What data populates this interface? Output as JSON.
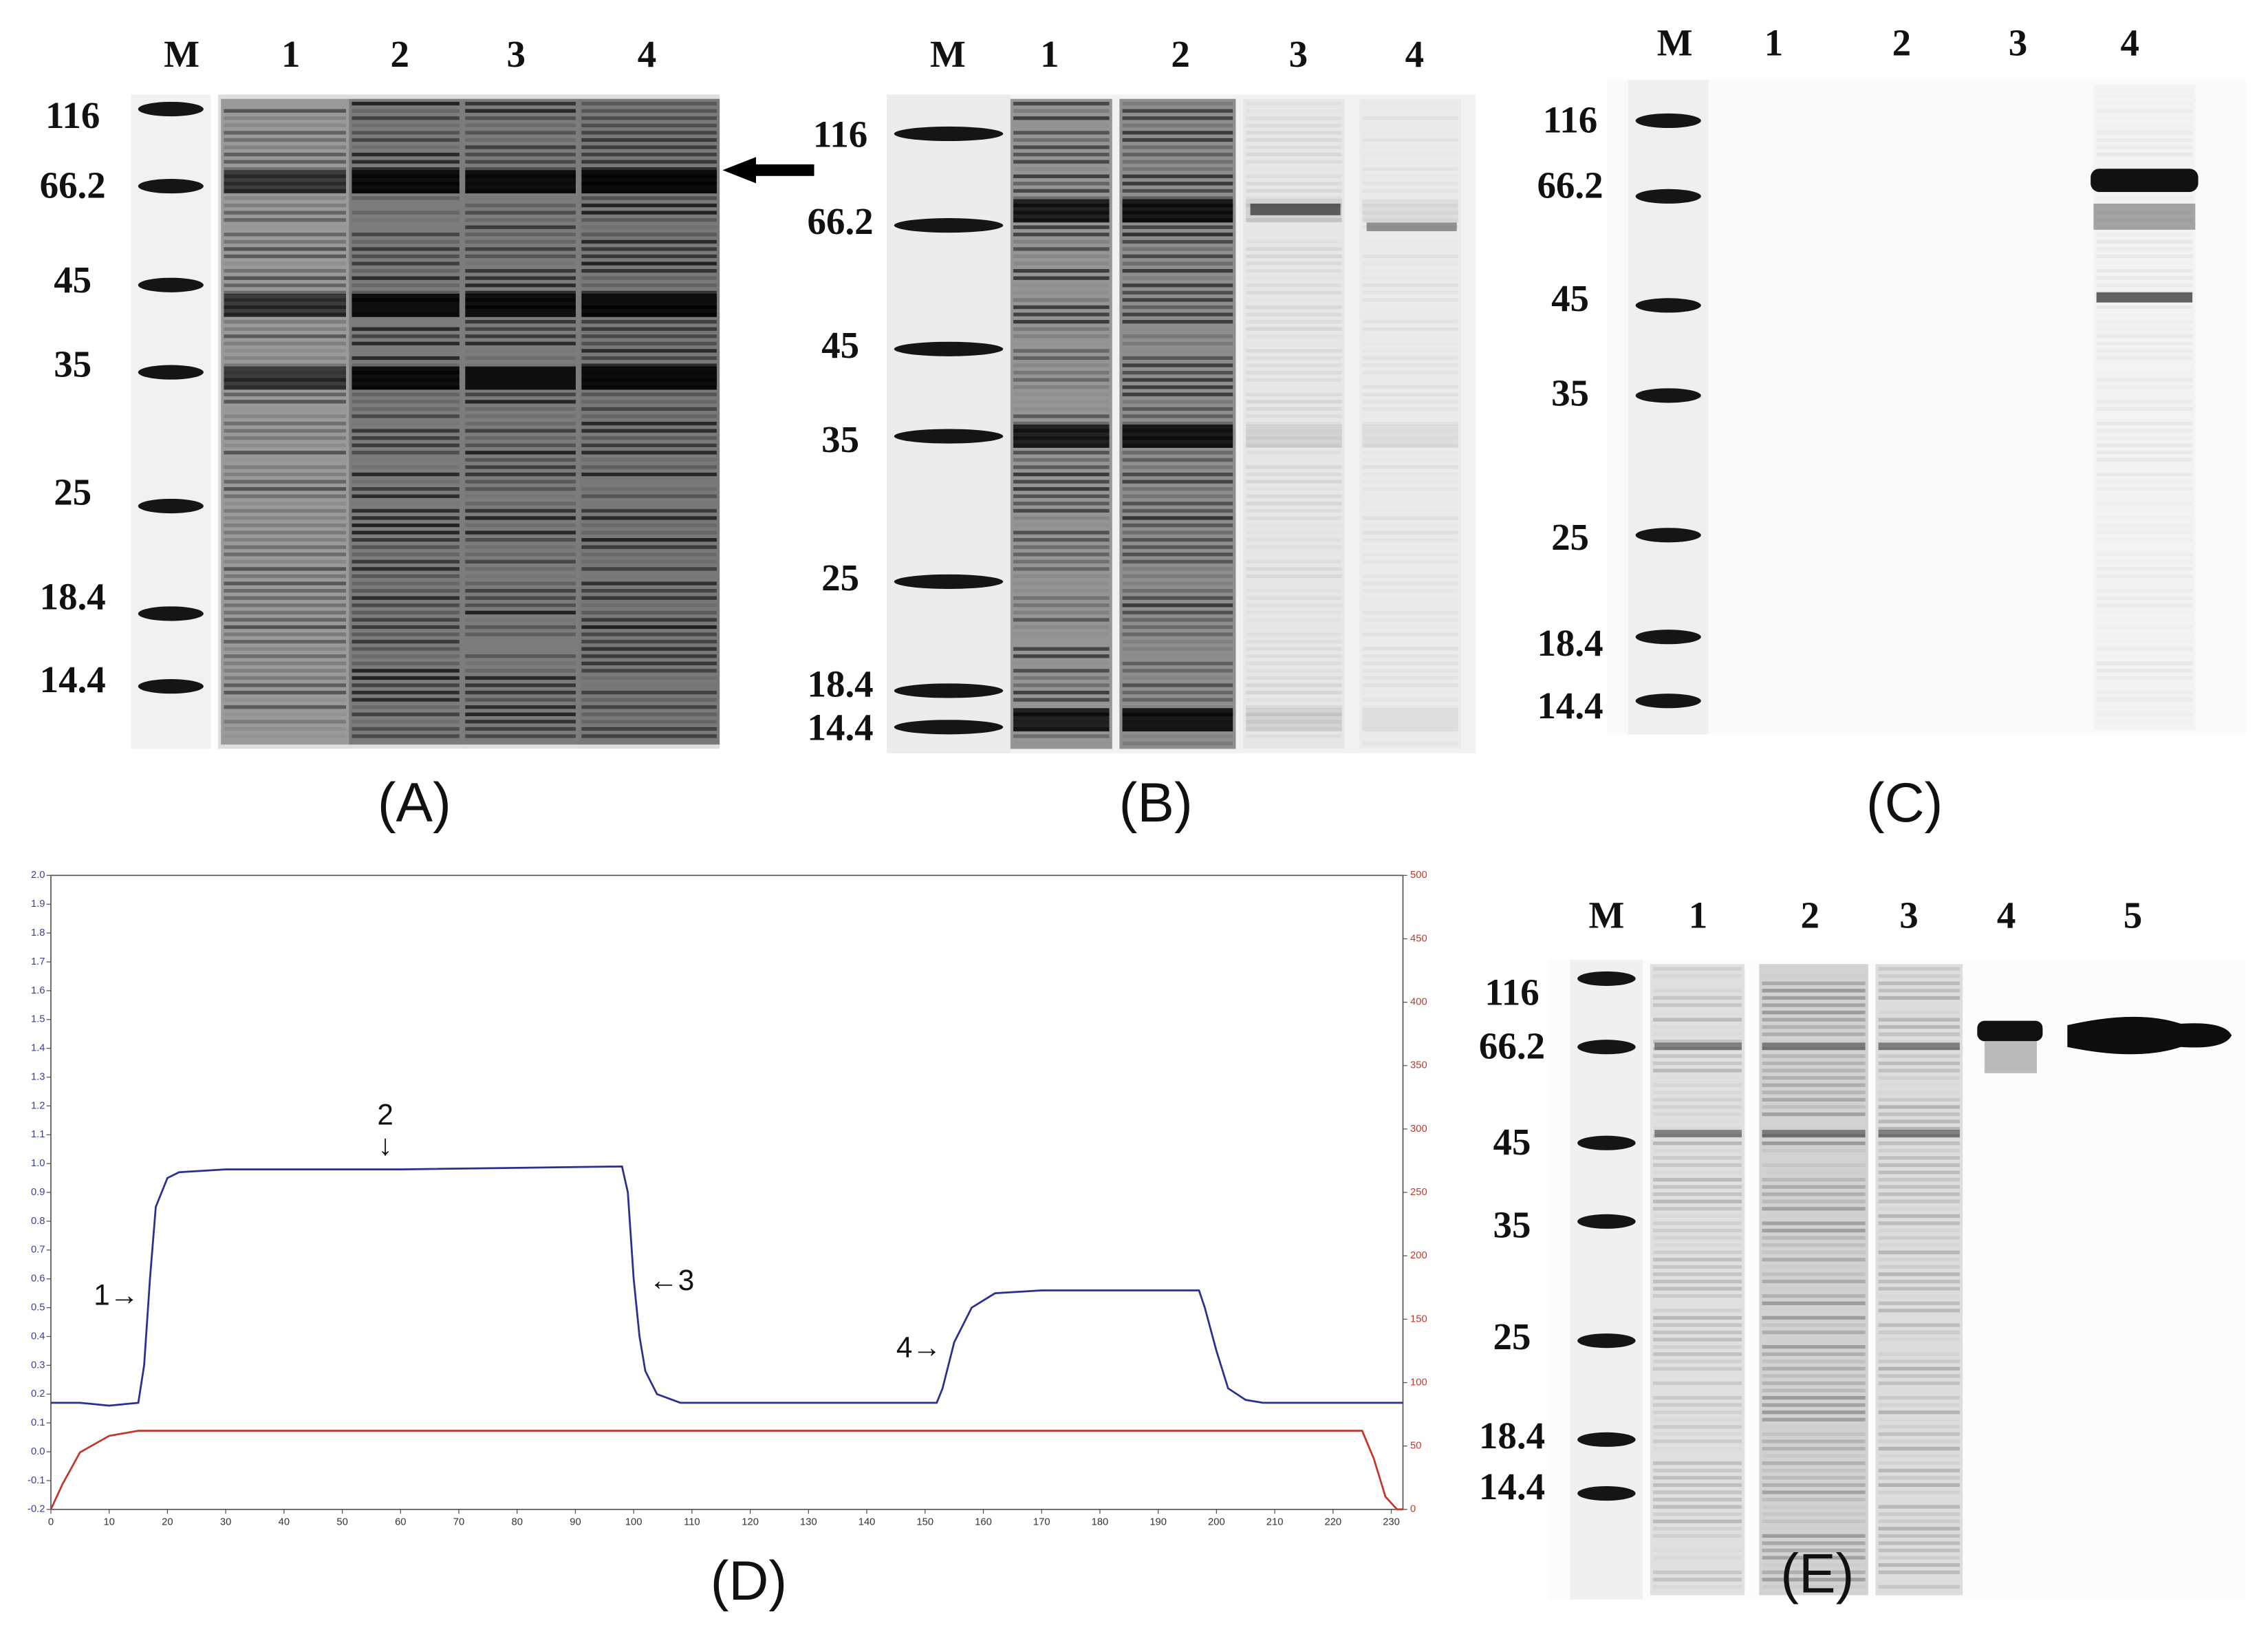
{
  "panels": [
    {
      "caption": "(A)",
      "lanes": [
        "M",
        "1",
        "2",
        "3",
        "4"
      ],
      "markers": [
        "116",
        "66.2",
        "45",
        "35",
        "25",
        "18.4",
        "14.4"
      ]
    },
    {
      "caption": "(B)",
      "lanes": [
        "M",
        "1",
        "2",
        "3",
        "4"
      ],
      "markers": [
        "116",
        "66.2",
        "45",
        "35",
        "25",
        "18.4",
        "14.4"
      ]
    },
    {
      "caption": "(C)",
      "lanes": [
        "M",
        "1",
        "2",
        "3",
        "4"
      ],
      "markers": [
        "116",
        "66.2",
        "45",
        "35",
        "25",
        "18.4",
        "14.4"
      ]
    },
    {
      "caption": "(E)",
      "lanes": [
        "M",
        "1",
        "2",
        "3",
        "4",
        "5"
      ],
      "markers": [
        "116",
        "66.2",
        "45",
        "35",
        "25",
        "18.4",
        "14.4"
      ]
    }
  ],
  "chart_data": {
    "type": "line",
    "title": "(D)",
    "x": [
      0,
      2,
      5,
      10,
      15,
      16,
      17,
      18,
      20,
      22,
      30,
      60,
      98,
      99,
      100,
      101,
      102,
      104,
      108,
      152,
      153,
      155,
      158,
      162,
      170,
      197,
      198,
      200,
      202,
      205,
      208,
      225,
      227,
      229,
      231,
      232
    ],
    "series": [
      {
        "color": "#2b2f8f",
        "values": [
          0.17,
          0.17,
          0.17,
          0.16,
          0.17,
          0.3,
          0.6,
          0.85,
          0.95,
          0.97,
          0.98,
          0.98,
          0.99,
          0.9,
          0.6,
          0.4,
          0.28,
          0.2,
          0.17,
          0.17,
          0.22,
          0.38,
          0.5,
          0.55,
          0.56,
          0.56,
          0.5,
          0.35,
          0.22,
          0.18,
          0.17,
          0.17,
          0.17,
          0.17,
          0.17,
          0.17
        ]
      },
      {
        "color": "#c0392b",
        "axis": "y2",
        "values": [
          0,
          20,
          45,
          58,
          62,
          62,
          62,
          62,
          62,
          62,
          62,
          62,
          62,
          62,
          62,
          62,
          62,
          62,
          62,
          62,
          62,
          62,
          62,
          62,
          62,
          62,
          62,
          62,
          62,
          62,
          62,
          62,
          40,
          10,
          0,
          0
        ]
      }
    ],
    "xlim": [
      0,
      232
    ],
    "xticks": [
      0,
      10,
      20,
      30,
      40,
      50,
      60,
      70,
      80,
      90,
      100,
      110,
      120,
      130,
      140,
      150,
      160,
      170,
      180,
      190,
      200,
      210,
      220,
      230
    ],
    "ylim": [
      -0.2,
      2.0
    ],
    "yticks": [
      -0.2,
      -0.1,
      {
        "value": 0,
        "label": "0.0"
      },
      0.1,
      0.2,
      0.3,
      0.4,
      0.5,
      0.6,
      0.7,
      0.8,
      0.9,
      {
        "value": 1,
        "label": "1.0"
      },
      1.1,
      1.2,
      1.3,
      1.4,
      1.5,
      1.6,
      1.7,
      1.8,
      1.9,
      {
        "value": 2,
        "label": "2.0"
      }
    ],
    "y2lim": [
      0,
      500
    ],
    "y2ticks": [
      0,
      50,
      100,
      150,
      200,
      250,
      300,
      350,
      400,
      450,
      500
    ],
    "annotations": [
      "1→",
      "2",
      "↓",
      "←3",
      "4→"
    ]
  }
}
